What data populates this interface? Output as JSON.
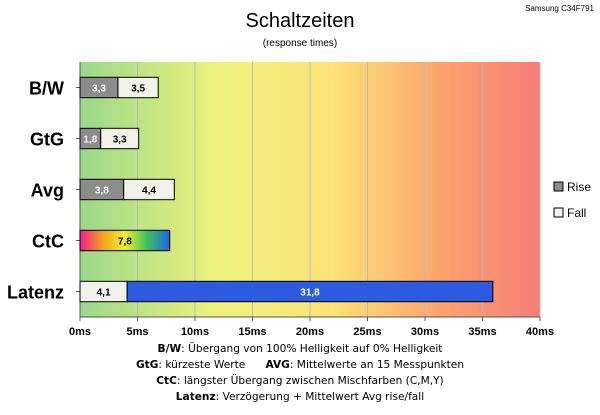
{
  "chart_data": {
    "type": "bar",
    "orientation": "horizontal",
    "stacked": true,
    "title": "Schaltzeiten",
    "subtitle": "(response times)",
    "model": "Samsung C34F791",
    "categories": [
      "B/W",
      "GtG",
      "Avg",
      "CtC",
      "Latenz"
    ],
    "series": [
      {
        "name": "Rise",
        "values": [
          3.3,
          1.8,
          3.8,
          null,
          null
        ],
        "labels": [
          "3,3",
          "1,8",
          "3,8",
          null,
          null
        ]
      },
      {
        "name": "Fall",
        "values": [
          3.5,
          3.3,
          4.4,
          null,
          4.1
        ],
        "labels": [
          "3,5",
          "3,3",
          "4,4",
          null,
          "4,1"
        ]
      },
      {
        "name": "",
        "values": [
          null,
          null,
          null,
          7.8,
          null
        ],
        "labels": [
          null,
          null,
          null,
          "7,8",
          null
        ]
      },
      {
        "name": "",
        "values": [
          null,
          null,
          null,
          null,
          31.8
        ],
        "labels": [
          null,
          null,
          null,
          null,
          "31,8"
        ]
      }
    ],
    "xlim": [
      0,
      40
    ],
    "x_ticks": [
      "0ms",
      "5ms",
      "10ms",
      "15ms",
      "20ms",
      "25ms",
      "30ms",
      "35ms",
      "40ms"
    ],
    "grid": true,
    "legend_position": "right",
    "background_gradient": [
      "green",
      "yellow",
      "red"
    ]
  },
  "notes": [
    {
      "term": "B/W",
      "text": ": Übergang von 100% Helligkeit auf 0% Helligkeit"
    },
    {
      "term": "GtG",
      "text": ": kürzeste Werte",
      "term2": "AVG",
      "text2": ": Mittelwerte an 15 Messpunkten"
    },
    {
      "term": "CtC",
      "text": ": längster Übergang zwischen Mischfarben (C,M,Y)"
    },
    {
      "term": "Latenz",
      "text": ": Verzögerung + Mittelwert Avg rise/fall"
    }
  ],
  "colors": {
    "rise": "#8c8c8c",
    "fall": "#f2f1ea",
    "latency": "#2c5ae0"
  }
}
